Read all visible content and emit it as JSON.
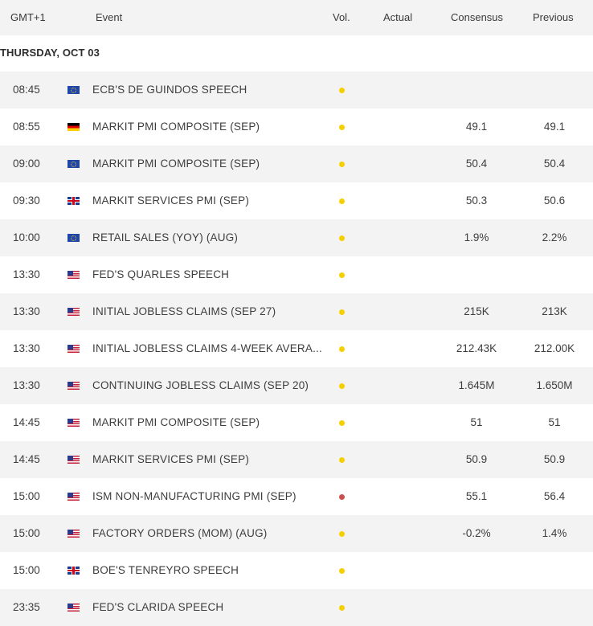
{
  "header": {
    "time": "GMT+1",
    "event": "Event",
    "vol": "Vol.",
    "actual": "Actual",
    "consensus": "Consensus",
    "previous": "Previous"
  },
  "date_label": "THURSDAY, OCT 03",
  "colors": {
    "vol_medium": "#f5d000",
    "vol_high": "#c8504f"
  },
  "rows": [
    {
      "time": "08:45",
      "flag": "eu",
      "event": "ECB'S DE GUINDOS SPEECH",
      "vol": "medium",
      "actual": "",
      "consensus": "",
      "previous": ""
    },
    {
      "time": "08:55",
      "flag": "de",
      "event": "MARKIT PMI COMPOSITE (SEP)",
      "vol": "medium",
      "actual": "",
      "consensus": "49.1",
      "previous": "49.1"
    },
    {
      "time": "09:00",
      "flag": "eu",
      "event": "MARKIT PMI COMPOSITE (SEP)",
      "vol": "medium",
      "actual": "",
      "consensus": "50.4",
      "previous": "50.4"
    },
    {
      "time": "09:30",
      "flag": "gb",
      "event": "MARKIT SERVICES PMI (SEP)",
      "vol": "medium",
      "actual": "",
      "consensus": "50.3",
      "previous": "50.6"
    },
    {
      "time": "10:00",
      "flag": "eu",
      "event": "RETAIL SALES (YOY) (AUG)",
      "vol": "medium",
      "actual": "",
      "consensus": "1.9%",
      "previous": "2.2%"
    },
    {
      "time": "13:30",
      "flag": "us",
      "event": "FED'S QUARLES SPEECH",
      "vol": "medium",
      "actual": "",
      "consensus": "",
      "previous": ""
    },
    {
      "time": "13:30",
      "flag": "us",
      "event": "INITIAL JOBLESS CLAIMS (SEP 27)",
      "vol": "medium",
      "actual": "",
      "consensus": "215K",
      "previous": "213K"
    },
    {
      "time": "13:30",
      "flag": "us",
      "event": "INITIAL JOBLESS CLAIMS 4-WEEK AVERA...",
      "vol": "medium",
      "actual": "",
      "consensus": "212.43K",
      "previous": "212.00K"
    },
    {
      "time": "13:30",
      "flag": "us",
      "event": "CONTINUING JOBLESS CLAIMS (SEP 20)",
      "vol": "medium",
      "actual": "",
      "consensus": "1.645M",
      "previous": "1.650M"
    },
    {
      "time": "14:45",
      "flag": "us",
      "event": "MARKIT PMI COMPOSITE (SEP)",
      "vol": "medium",
      "actual": "",
      "consensus": "51",
      "previous": "51"
    },
    {
      "time": "14:45",
      "flag": "us",
      "event": "MARKIT SERVICES PMI (SEP)",
      "vol": "medium",
      "actual": "",
      "consensus": "50.9",
      "previous": "50.9"
    },
    {
      "time": "15:00",
      "flag": "us",
      "event": "ISM NON-MANUFACTURING PMI (SEP)",
      "vol": "high",
      "actual": "",
      "consensus": "55.1",
      "previous": "56.4"
    },
    {
      "time": "15:00",
      "flag": "us",
      "event": "FACTORY ORDERS (MOM) (AUG)",
      "vol": "medium",
      "actual": "",
      "consensus": "-0.2%",
      "previous": "1.4%"
    },
    {
      "time": "15:00",
      "flag": "gb",
      "event": "BOE'S TENREYRO SPEECH",
      "vol": "medium",
      "actual": "",
      "consensus": "",
      "previous": ""
    },
    {
      "time": "23:35",
      "flag": "us",
      "event": "FED'S CLARIDA SPEECH",
      "vol": "medium",
      "actual": "",
      "consensus": "",
      "previous": ""
    }
  ]
}
